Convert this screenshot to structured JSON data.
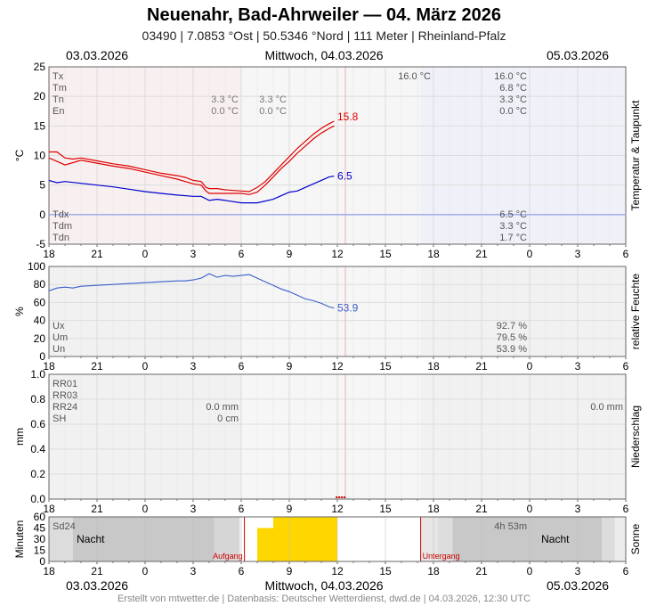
{
  "header": {
    "title": "Neuenahr, Bad-Ahrweiler  —  04. März 2026",
    "subtitle": "03490  |  7.0853 °Ost  |  50.5346 °Nord  |  111 Meter  |  Rheinland-Pfalz"
  },
  "dates": {
    "left": "03.03.2026",
    "center": "Mittwoch, 04.03.2026",
    "right": "05.03.2026"
  },
  "footer": "Erstellt von mtwetter.de | Datenbasis: Deutscher Wetterdienst, dwd.de | 04.03.2026, 12:30 UTC",
  "colors": {
    "temperature": "#e00000",
    "dewpoint": "#0000cc",
    "humidity": "#3a5fcd",
    "sun": "#ffd700",
    "night": "#c8c8c8",
    "sun_event": "#cc0000"
  },
  "chart_data": [
    {
      "type": "line",
      "ylabel": "°C",
      "side_label": "Temperatur & Taupunkt",
      "ylim": [
        -5,
        25
      ],
      "yticks": [
        "25",
        "20",
        "15",
        "10",
        "5",
        "0",
        "-5"
      ],
      "x_hours": [
        18,
        21,
        0,
        3,
        6,
        9,
        12,
        15,
        18,
        21,
        0,
        3,
        6
      ],
      "xtick_labels": [
        "18",
        "21",
        "0",
        "3",
        "6",
        "9",
        "12",
        "15",
        "18",
        "21",
        "0",
        "3",
        "6"
      ],
      "xlim": [
        -6,
        30
      ],
      "series": [
        {
          "key": "temp_max",
          "x": [
            -6,
            -5.5,
            -5,
            -4.5,
            -4,
            -3,
            -2,
            -1,
            0,
            1,
            2,
            2.5,
            3,
            3.5,
            3.8,
            4,
            4.5,
            5,
            6,
            6.5,
            7,
            7.5,
            8,
            8.5,
            9,
            9.5,
            10,
            10.5,
            11,
            11.5,
            11.8
          ],
          "y": [
            10.6,
            10.6,
            9.6,
            9.4,
            9.6,
            9.1,
            8.6,
            8.2,
            7.6,
            7.0,
            6.6,
            6.3,
            5.8,
            5.6,
            4.6,
            4.4,
            4.4,
            4.2,
            4.0,
            3.9,
            4.6,
            5.6,
            7.0,
            8.4,
            9.8,
            11.2,
            12.4,
            13.6,
            14.6,
            15.4,
            15.8
          ]
        },
        {
          "key": "temp_min",
          "x": [
            -6,
            -5.5,
            -5,
            -4.5,
            -4,
            -3,
            -2,
            -1,
            0,
            1,
            2,
            2.5,
            3,
            3.5,
            3.8,
            4,
            4.5,
            5,
            6,
            6.5,
            7,
            7.5,
            8,
            8.5,
            9,
            9.5,
            10,
            10.5,
            11,
            11.5,
            11.8
          ],
          "y": [
            9.6,
            9.0,
            8.4,
            8.8,
            9.2,
            8.7,
            8.2,
            7.8,
            7.2,
            6.6,
            6.0,
            5.6,
            5.2,
            5.0,
            4.0,
            3.6,
            3.6,
            3.6,
            3.6,
            3.4,
            3.8,
            5.0,
            6.4,
            7.8,
            9.0,
            10.4,
            11.6,
            12.8,
            13.8,
            14.6,
            15.0
          ]
        },
        {
          "key": "dewpoint",
          "x": [
            -6,
            -5.5,
            -5,
            -4,
            -3,
            -2,
            -1,
            0,
            1,
            2,
            3,
            3.5,
            4,
            4.5,
            5,
            6,
            7,
            8,
            8.5,
            9,
            9.5,
            10,
            10.5,
            11,
            11.5,
            11.8
          ],
          "y": [
            5.8,
            5.4,
            5.6,
            5.3,
            5.0,
            4.7,
            4.3,
            3.9,
            3.6,
            3.3,
            3.1,
            3.1,
            2.4,
            2.6,
            2.4,
            2.0,
            2.0,
            2.6,
            3.2,
            3.8,
            4.0,
            4.6,
            5.2,
            5.8,
            6.4,
            6.5
          ]
        }
      ],
      "end_labels": {
        "temp": "15.8",
        "dew": "6.5"
      },
      "stats": {
        "top": [
          {
            "name": "Tx",
            "c1": "",
            "c2": "",
            "c3": "16.0 °C",
            "c4": "16.0 °C"
          },
          {
            "name": "Tm",
            "c1": "",
            "c2": "",
            "c3": "",
            "c4": "6.8 °C"
          },
          {
            "name": "Tn",
            "c1": "3.3 °C",
            "c2": "3.3 °C",
            "c3": "",
            "c4": "3.3 °C"
          },
          {
            "name": "En",
            "c1": "0.0 °C",
            "c2": "0.0 °C",
            "c3": "",
            "c4": "0.0 °C"
          }
        ],
        "bottom": [
          {
            "name": "Tdx",
            "value": "6.5 °C"
          },
          {
            "name": "Tdm",
            "value": "3.3 °C"
          },
          {
            "name": "Tdn",
            "value": "1.7 °C"
          }
        ]
      }
    },
    {
      "type": "line",
      "ylabel": "%",
      "side_label": "relative Feuchte",
      "ylim": [
        0,
        100
      ],
      "yticks": [
        "100",
        "80",
        "60",
        "40",
        "20",
        "0"
      ],
      "series": [
        {
          "key": "humidity",
          "x": [
            -6,
            -5.5,
            -5,
            -4.5,
            -4,
            -3,
            -2,
            -1,
            0,
            1,
            2,
            2.5,
            3,
            3.5,
            4,
            4.5,
            5,
            5.5,
            6,
            6.5,
            7,
            7.5,
            8,
            8.5,
            9,
            9.5,
            10,
            10.5,
            11,
            11.5,
            11.8
          ],
          "y": [
            73,
            76,
            77,
            76,
            78,
            79,
            80,
            81,
            82,
            83,
            84,
            84,
            85,
            87,
            92,
            88,
            90,
            89,
            90,
            91,
            87,
            83,
            79,
            75,
            72,
            68,
            64,
            62,
            59,
            55,
            53.9
          ]
        }
      ],
      "end_label": "53.9",
      "stats": [
        {
          "name": "Ux",
          "value": "92.7 %"
        },
        {
          "name": "Um",
          "value": "79.5 %"
        },
        {
          "name": "Un",
          "value": "53.9 %"
        }
      ]
    },
    {
      "type": "bar",
      "ylabel": "mm",
      "side_label": "Niederschlag",
      "ylim": [
        0,
        1.0
      ],
      "yticks": [
        "1.0",
        "0.8",
        "0.6",
        "0.4",
        "0.2",
        "0.0"
      ],
      "values": [],
      "stats": [
        {
          "name": "RR01",
          "value": ""
        },
        {
          "name": "RR03",
          "value": ""
        },
        {
          "name": "RR24",
          "value": "0.0 mm"
        },
        {
          "name": "SH",
          "value": "0 cm"
        }
      ],
      "right_value": "0.0 mm"
    },
    {
      "type": "bar",
      "ylabel": "Minuten",
      "side_label": "Sonne",
      "ylim": [
        0,
        60
      ],
      "yticks": [
        "60",
        "45",
        "30",
        "15",
        "0"
      ],
      "sunshine": [
        {
          "start": 7,
          "end": 8,
          "minutes": 45
        },
        {
          "start": 8,
          "end": 12,
          "minutes": 60
        }
      ],
      "night": [
        {
          "start": -6,
          "end": 5.9,
          "label": "Nacht"
        },
        {
          "start": 17.2,
          "end": 30,
          "label": "Nacht"
        }
      ],
      "sunrise_hour": 6.2,
      "sunset_hour": 17.2,
      "labels": {
        "sd24": "Sd24",
        "duration": "4h 53m",
        "sunrise": "Aufgang",
        "sunset": "Untergang"
      }
    }
  ]
}
